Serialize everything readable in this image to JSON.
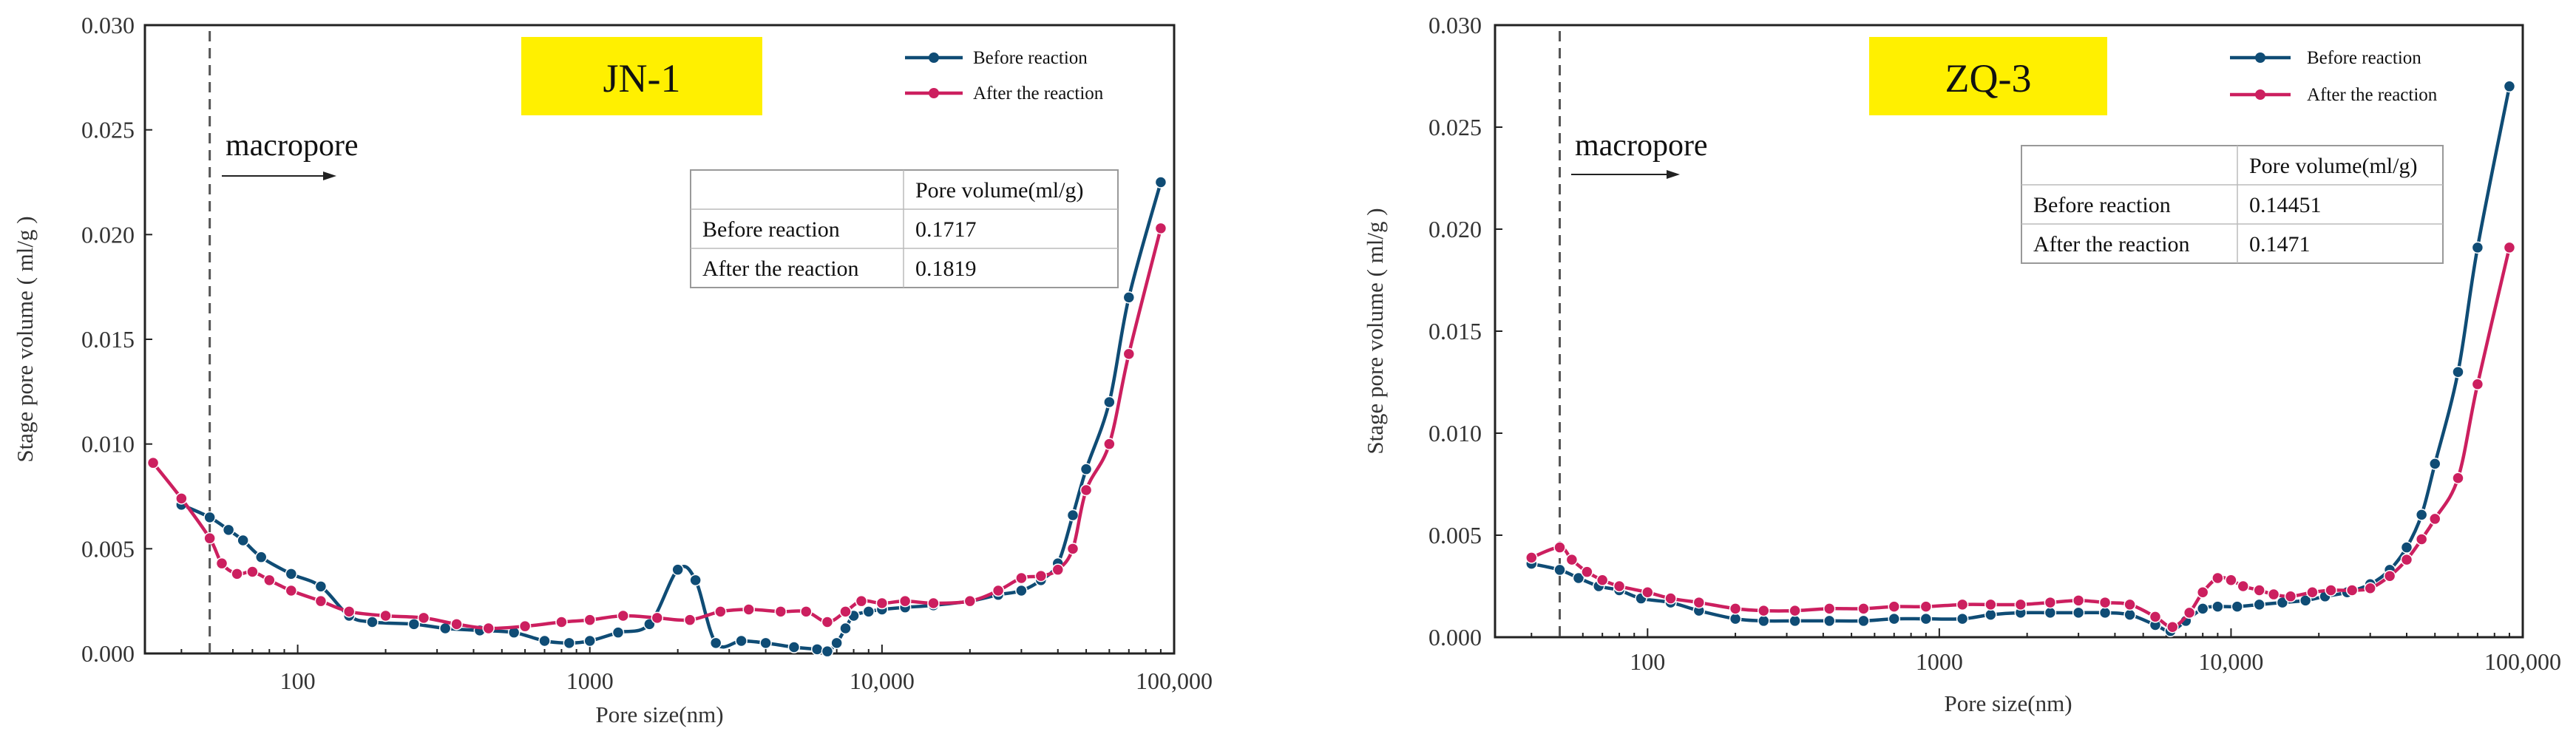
{
  "colors": {
    "before": "#0f4c75",
    "after": "#cc1f5f",
    "title_bg": "#fff000",
    "grid_line": "#555555"
  },
  "chart_data": [
    {
      "type": "line",
      "title": "JN-1",
      "xlabel": "Pore size(nm)",
      "ylabel": "Stage pore volume ( ml/g )",
      "x_scale": "log",
      "xlim": [
        30,
        100000
      ],
      "ylim": [
        0,
        0.03
      ],
      "x_ticks": [
        100,
        1000,
        10000,
        100000
      ],
      "x_tick_labels": [
        "100",
        "1000",
        "10,000",
        "100,000"
      ],
      "y_ticks": [
        0,
        0.005,
        0.01,
        0.015,
        0.02,
        0.025,
        0.03
      ],
      "y_tick_labels": [
        "0.000",
        "0.005",
        "0.010",
        "0.015",
        "0.020",
        "0.025",
        "0.030"
      ],
      "annotation": "macropore",
      "macropore_boundary_x": 50,
      "legend_position": "top-right",
      "series": [
        {
          "name": "Before reaction",
          "color_key": "before",
          "x": [
            40,
            50,
            58,
            65,
            75,
            95,
            120,
            150,
            180,
            250,
            320,
            420,
            550,
            700,
            850,
            1000,
            1250,
            1600,
            2000,
            2300,
            2700,
            3300,
            4000,
            5000,
            6000,
            6500,
            7000,
            7500,
            8000,
            9000,
            10000,
            12000,
            15000,
            20000,
            25000,
            30000,
            35000,
            40000,
            45000,
            50000,
            60000,
            70000,
            90000
          ],
          "y": [
            0.0071,
            0.0065,
            0.0059,
            0.0054,
            0.0046,
            0.0038,
            0.0032,
            0.0018,
            0.0015,
            0.0014,
            0.0012,
            0.0011,
            0.001,
            0.0006,
            0.0005,
            0.0006,
            0.001,
            0.0014,
            0.004,
            0.0035,
            0.0005,
            0.0006,
            0.0005,
            0.0003,
            0.0002,
            0.0001,
            0.0005,
            0.0012,
            0.0018,
            0.002,
            0.0021,
            0.0022,
            0.0023,
            0.0025,
            0.0028,
            0.003,
            0.0035,
            0.0043,
            0.0066,
            0.0088,
            0.012,
            0.017,
            0.0225
          ]
        },
        {
          "name": "After the reaction",
          "color_key": "after",
          "x": [
            32,
            40,
            50,
            55,
            62,
            70,
            80,
            95,
            120,
            150,
            200,
            270,
            350,
            450,
            600,
            800,
            1000,
            1300,
            1700,
            2200,
            2800,
            3500,
            4500,
            5500,
            6500,
            7500,
            8500,
            10000,
            12000,
            15000,
            20000,
            25000,
            30000,
            35000,
            40000,
            45000,
            50000,
            60000,
            70000,
            90000
          ],
          "y": [
            0.0091,
            0.0074,
            0.0055,
            0.0043,
            0.0038,
            0.0039,
            0.0035,
            0.003,
            0.0025,
            0.002,
            0.0018,
            0.0017,
            0.0014,
            0.0012,
            0.0013,
            0.0015,
            0.0016,
            0.0018,
            0.0017,
            0.0016,
            0.002,
            0.0021,
            0.002,
            0.002,
            0.0015,
            0.002,
            0.0025,
            0.0024,
            0.0025,
            0.0024,
            0.0025,
            0.003,
            0.0036,
            0.0037,
            0.004,
            0.005,
            0.0078,
            0.01,
            0.0143,
            0.0203
          ]
        }
      ],
      "table": {
        "header": [
          "",
          "Pore volume(ml/g)"
        ],
        "rows": [
          [
            "Before reaction",
            "0.1717"
          ],
          [
            "After the reaction",
            "0.1819"
          ]
        ]
      }
    },
    {
      "type": "line",
      "title": "ZQ-3",
      "xlabel": "Pore size(nm)",
      "ylabel": "Stage pore volume ( ml/g )",
      "x_scale": "log",
      "xlim": [
        30,
        100000
      ],
      "ylim": [
        0,
        0.03
      ],
      "x_ticks": [
        100,
        1000,
        10000,
        100000
      ],
      "x_tick_labels": [
        "100",
        "1000",
        "10,000",
        "100,000"
      ],
      "y_ticks": [
        0,
        0.005,
        0.01,
        0.015,
        0.02,
        0.025,
        0.03
      ],
      "y_tick_labels": [
        "0.000",
        "0.005",
        "0.010",
        "0.015",
        "0.020",
        "0.025",
        "0.030"
      ],
      "annotation": "macropore",
      "macropore_boundary_x": 50,
      "legend_position": "top-right",
      "series": [
        {
          "name": "Before reaction",
          "color_key": "before",
          "x": [
            40,
            50,
            58,
            68,
            80,
            95,
            120,
            150,
            200,
            250,
            320,
            420,
            550,
            700,
            900,
            1200,
            1500,
            1900,
            2400,
            3000,
            3700,
            4500,
            5500,
            6200,
            7000,
            8000,
            9000,
            10500,
            12500,
            15000,
            18000,
            21000,
            25000,
            30000,
            35000,
            40000,
            45000,
            50000,
            60000,
            70000,
            90000
          ],
          "y": [
            0.0036,
            0.0033,
            0.0029,
            0.0025,
            0.0023,
            0.0019,
            0.0017,
            0.0013,
            0.0009,
            0.0008,
            0.0008,
            0.0008,
            0.0008,
            0.0009,
            0.0009,
            0.0009,
            0.0011,
            0.0012,
            0.0012,
            0.0012,
            0.0012,
            0.0011,
            0.0006,
            0.0003,
            0.0008,
            0.0014,
            0.0015,
            0.0015,
            0.0016,
            0.0017,
            0.0018,
            0.002,
            0.0022,
            0.0026,
            0.0033,
            0.0044,
            0.006,
            0.0085,
            0.013,
            0.0191,
            0.027
          ]
        },
        {
          "name": "After the reaction",
          "color_key": "after",
          "x": [
            40,
            50,
            55,
            62,
            70,
            80,
            100,
            120,
            150,
            200,
            250,
            320,
            420,
            550,
            700,
            900,
            1200,
            1500,
            1900,
            2400,
            3000,
            3700,
            4500,
            5500,
            6300,
            7200,
            8000,
            9000,
            10000,
            11000,
            12500,
            14000,
            16000,
            19000,
            22000,
            26000,
            30000,
            35000,
            40000,
            45000,
            50000,
            60000,
            70000,
            90000
          ],
          "y": [
            0.0039,
            0.0044,
            0.0038,
            0.0032,
            0.0028,
            0.0025,
            0.0022,
            0.0019,
            0.0017,
            0.0014,
            0.0013,
            0.0013,
            0.0014,
            0.0014,
            0.0015,
            0.0015,
            0.0016,
            0.0016,
            0.0016,
            0.0017,
            0.0018,
            0.0017,
            0.0016,
            0.001,
            0.0005,
            0.0012,
            0.0022,
            0.0029,
            0.0028,
            0.0025,
            0.0023,
            0.0021,
            0.002,
            0.0022,
            0.0023,
            0.0023,
            0.0024,
            0.003,
            0.0038,
            0.0048,
            0.0058,
            0.0078,
            0.0124,
            0.0191
          ]
        }
      ],
      "table": {
        "header": [
          "",
          "Pore volume(ml/g)"
        ],
        "rows": [
          [
            "Before reaction",
            "0.14451"
          ],
          [
            "After the reaction",
            "0.1471"
          ]
        ]
      }
    }
  ]
}
